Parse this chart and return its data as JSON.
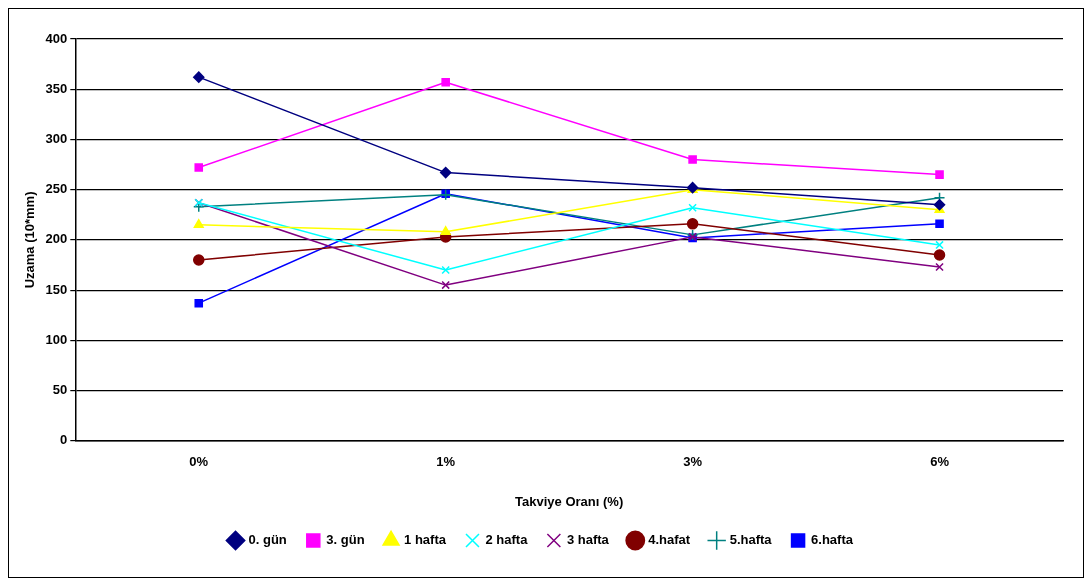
{
  "chart_data": {
    "type": "line",
    "xlabel": "Takviye Oranı (%)",
    "ylabel": "Uzama (10*mm)",
    "categories": [
      "0%",
      "1%",
      "3%",
      "6%"
    ],
    "ylim": [
      0,
      400
    ],
    "yticks": [
      0,
      50,
      100,
      150,
      200,
      250,
      300,
      350,
      400
    ],
    "grid": "y",
    "legend": "bottom",
    "line_style": "solid",
    "series": [
      {
        "name": "0. gün",
        "color": "#000080",
        "marker": "diamond",
        "values": [
          362,
          267,
          252,
          235
        ]
      },
      {
        "name": "3. gün",
        "color": "#ff00ff",
        "marker": "square",
        "values": [
          272,
          357,
          280,
          265
        ]
      },
      {
        "name": "1 hafta",
        "color": "#ffff00",
        "marker": "triangle",
        "values": [
          215,
          208,
          250,
          230
        ]
      },
      {
        "name": "2 hafta",
        "color": "#00ffff",
        "marker": "cross",
        "values": [
          237,
          170,
          232,
          195
        ]
      },
      {
        "name": "3 hafta",
        "color": "#800080",
        "marker": "cross",
        "values": [
          237,
          155,
          203,
          173
        ]
      },
      {
        "name": "4.hafat",
        "color": "#800000",
        "marker": "circle",
        "values": [
          180,
          203,
          216,
          185
        ]
      },
      {
        "name": "5.hafta",
        "color": "#008080",
        "marker": "plus",
        "values": [
          233,
          245,
          205,
          242
        ]
      },
      {
        "name": "6.hafta",
        "color": "#0000ff",
        "marker": "square",
        "values": [
          137,
          246,
          202,
          216
        ]
      }
    ]
  }
}
